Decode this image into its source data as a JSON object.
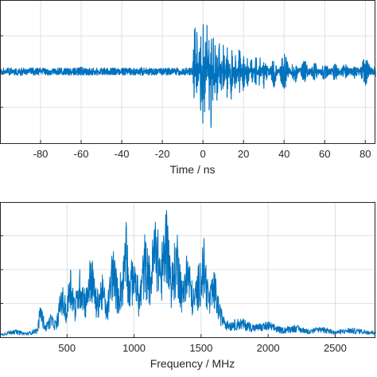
{
  "chart_data": [
    {
      "type": "line",
      "title": "",
      "xlabel": "Time / ns",
      "ylabel": "",
      "xlim": [
        -100,
        85
      ],
      "ylim": [
        -1,
        1
      ],
      "xticks": [
        -80,
        -60,
        -40,
        -20,
        0,
        20,
        40,
        60,
        80
      ],
      "yticks": [
        -0.5,
        0,
        0.5
      ],
      "grid": true,
      "legend": "none",
      "color": "#0072bd",
      "series": [
        {
          "name": "",
          "x": [
            -100,
            -90,
            -80,
            -70,
            -60,
            -50,
            -40,
            -30,
            -20,
            -10,
            -5,
            -4,
            -3,
            -2,
            -1,
            0,
            1,
            2,
            3,
            4,
            5,
            6,
            7,
            8,
            9,
            10,
            12,
            14,
            16,
            18,
            20,
            22,
            24,
            26,
            28,
            30,
            35,
            40,
            45,
            50,
            55,
            60,
            65,
            70,
            75,
            80,
            85
          ],
          "y": [
            0.03,
            -0.06,
            0.05,
            -0.04,
            0.07,
            -0.05,
            0.04,
            -0.06,
            0.05,
            -0.04,
            0.06,
            0.82,
            -0.85,
            0.62,
            -0.92,
            0.98,
            -0.88,
            0.72,
            -0.66,
            0.86,
            -0.72,
            0.55,
            -0.6,
            0.48,
            -0.52,
            0.45,
            -0.4,
            0.42,
            -0.35,
            0.38,
            -0.33,
            0.3,
            -0.28,
            0.27,
            -0.25,
            0.24,
            -0.22,
            0.3,
            -0.2,
            0.18,
            -0.16,
            0.15,
            -0.14,
            0.12,
            -0.11,
            0.22,
            -0.1
          ]
        }
      ]
    },
    {
      "type": "line",
      "title": "",
      "xlabel": "Frequency / MHz",
      "ylabel": "",
      "xlim": [
        0,
        2800
      ],
      "ylim": [
        0,
        1
      ],
      "xticks": [
        500,
        1000,
        1500,
        2000,
        2500
      ],
      "yticks": [
        0.25,
        0.5,
        0.75
      ],
      "grid": true,
      "legend": "none",
      "color": "#0072bd",
      "series": [
        {
          "name": "",
          "x": [
            0,
            100,
            200,
            280,
            300,
            340,
            380,
            420,
            460,
            500,
            520,
            560,
            600,
            640,
            680,
            720,
            760,
            800,
            840,
            880,
            920,
            940,
            960,
            1000,
            1040,
            1080,
            1120,
            1160,
            1200,
            1240,
            1280,
            1320,
            1360,
            1400,
            1440,
            1480,
            1520,
            1560,
            1600,
            1640,
            1700,
            1800,
            1900,
            2000,
            2100,
            2200,
            2300,
            2400,
            2500,
            2600,
            2700,
            2800
          ],
          "y": [
            0.02,
            0.05,
            0.03,
            0.06,
            0.22,
            0.08,
            0.15,
            0.1,
            0.35,
            0.2,
            0.5,
            0.25,
            0.45,
            0.3,
            0.55,
            0.28,
            0.4,
            0.22,
            0.6,
            0.35,
            0.5,
            0.88,
            0.4,
            0.55,
            0.3,
            0.65,
            0.48,
            0.8,
            0.52,
            0.85,
            0.45,
            0.7,
            0.35,
            0.58,
            0.3,
            0.45,
            0.62,
            0.3,
            0.42,
            0.2,
            0.1,
            0.12,
            0.08,
            0.1,
            0.06,
            0.08,
            0.05,
            0.07,
            0.04,
            0.06,
            0.05,
            0.04
          ]
        }
      ]
    }
  ]
}
